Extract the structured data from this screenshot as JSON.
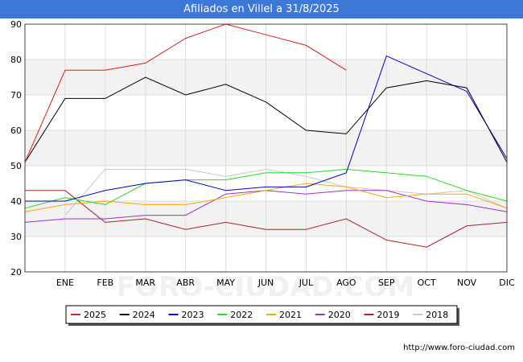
{
  "title": "Afiliados en Villel a 31/8/2025",
  "source": "http://www.foro-ciudad.com",
  "watermark": "FORO-CIUDAD.COM",
  "chart_data": {
    "type": "line",
    "categories": [
      "",
      "ENE",
      "FEB",
      "MAR",
      "ABR",
      "MAY",
      "JUN",
      "JUL",
      "AGO",
      "SEP",
      "OCT",
      "NOV",
      "DIC"
    ],
    "ylim": [
      20,
      90
    ],
    "yticks": [
      20,
      30,
      40,
      50,
      60,
      70,
      80,
      90
    ],
    "grid": true,
    "legend_position": "bottom",
    "series": [
      {
        "name": "2025",
        "color": "#e41a1c",
        "values": [
          51,
          77,
          77,
          79,
          86,
          90,
          87,
          84,
          77,
          null,
          null,
          null,
          null
        ]
      },
      {
        "name": "2024",
        "color": "#000000",
        "values": [
          51,
          69,
          69,
          75,
          70,
          73,
          68,
          60,
          59,
          72,
          74,
          72,
          51
        ]
      },
      {
        "name": "2023",
        "color": "#0000cc",
        "values": [
          40,
          40,
          43,
          45,
          46,
          43,
          44,
          44,
          48,
          81,
          76,
          71,
          52
        ]
      },
      {
        "name": "2022",
        "color": "#22dd22",
        "values": [
          38,
          41,
          39,
          45,
          46,
          46,
          48,
          48,
          49,
          48,
          47,
          43,
          40
        ]
      },
      {
        "name": "2021",
        "color": "#ffa500",
        "values": [
          37,
          39,
          40,
          39,
          39,
          41,
          43,
          45,
          44,
          41,
          42,
          42,
          38
        ]
      },
      {
        "name": "2020",
        "color": "#9932cc",
        "values": [
          34,
          35,
          35,
          36,
          36,
          42,
          43,
          42,
          43,
          43,
          40,
          39,
          37
        ]
      },
      {
        "name": "2019",
        "color": "#aa2222",
        "values": [
          43,
          43,
          34,
          35,
          32,
          34,
          32,
          32,
          35,
          29,
          27,
          33,
          34
        ]
      },
      {
        "name": "2018",
        "color": "#c8c8c8",
        "values": [
          null,
          36,
          49,
          49,
          49,
          47,
          49,
          47,
          44,
          43,
          42,
          43,
          38
        ]
      }
    ]
  }
}
